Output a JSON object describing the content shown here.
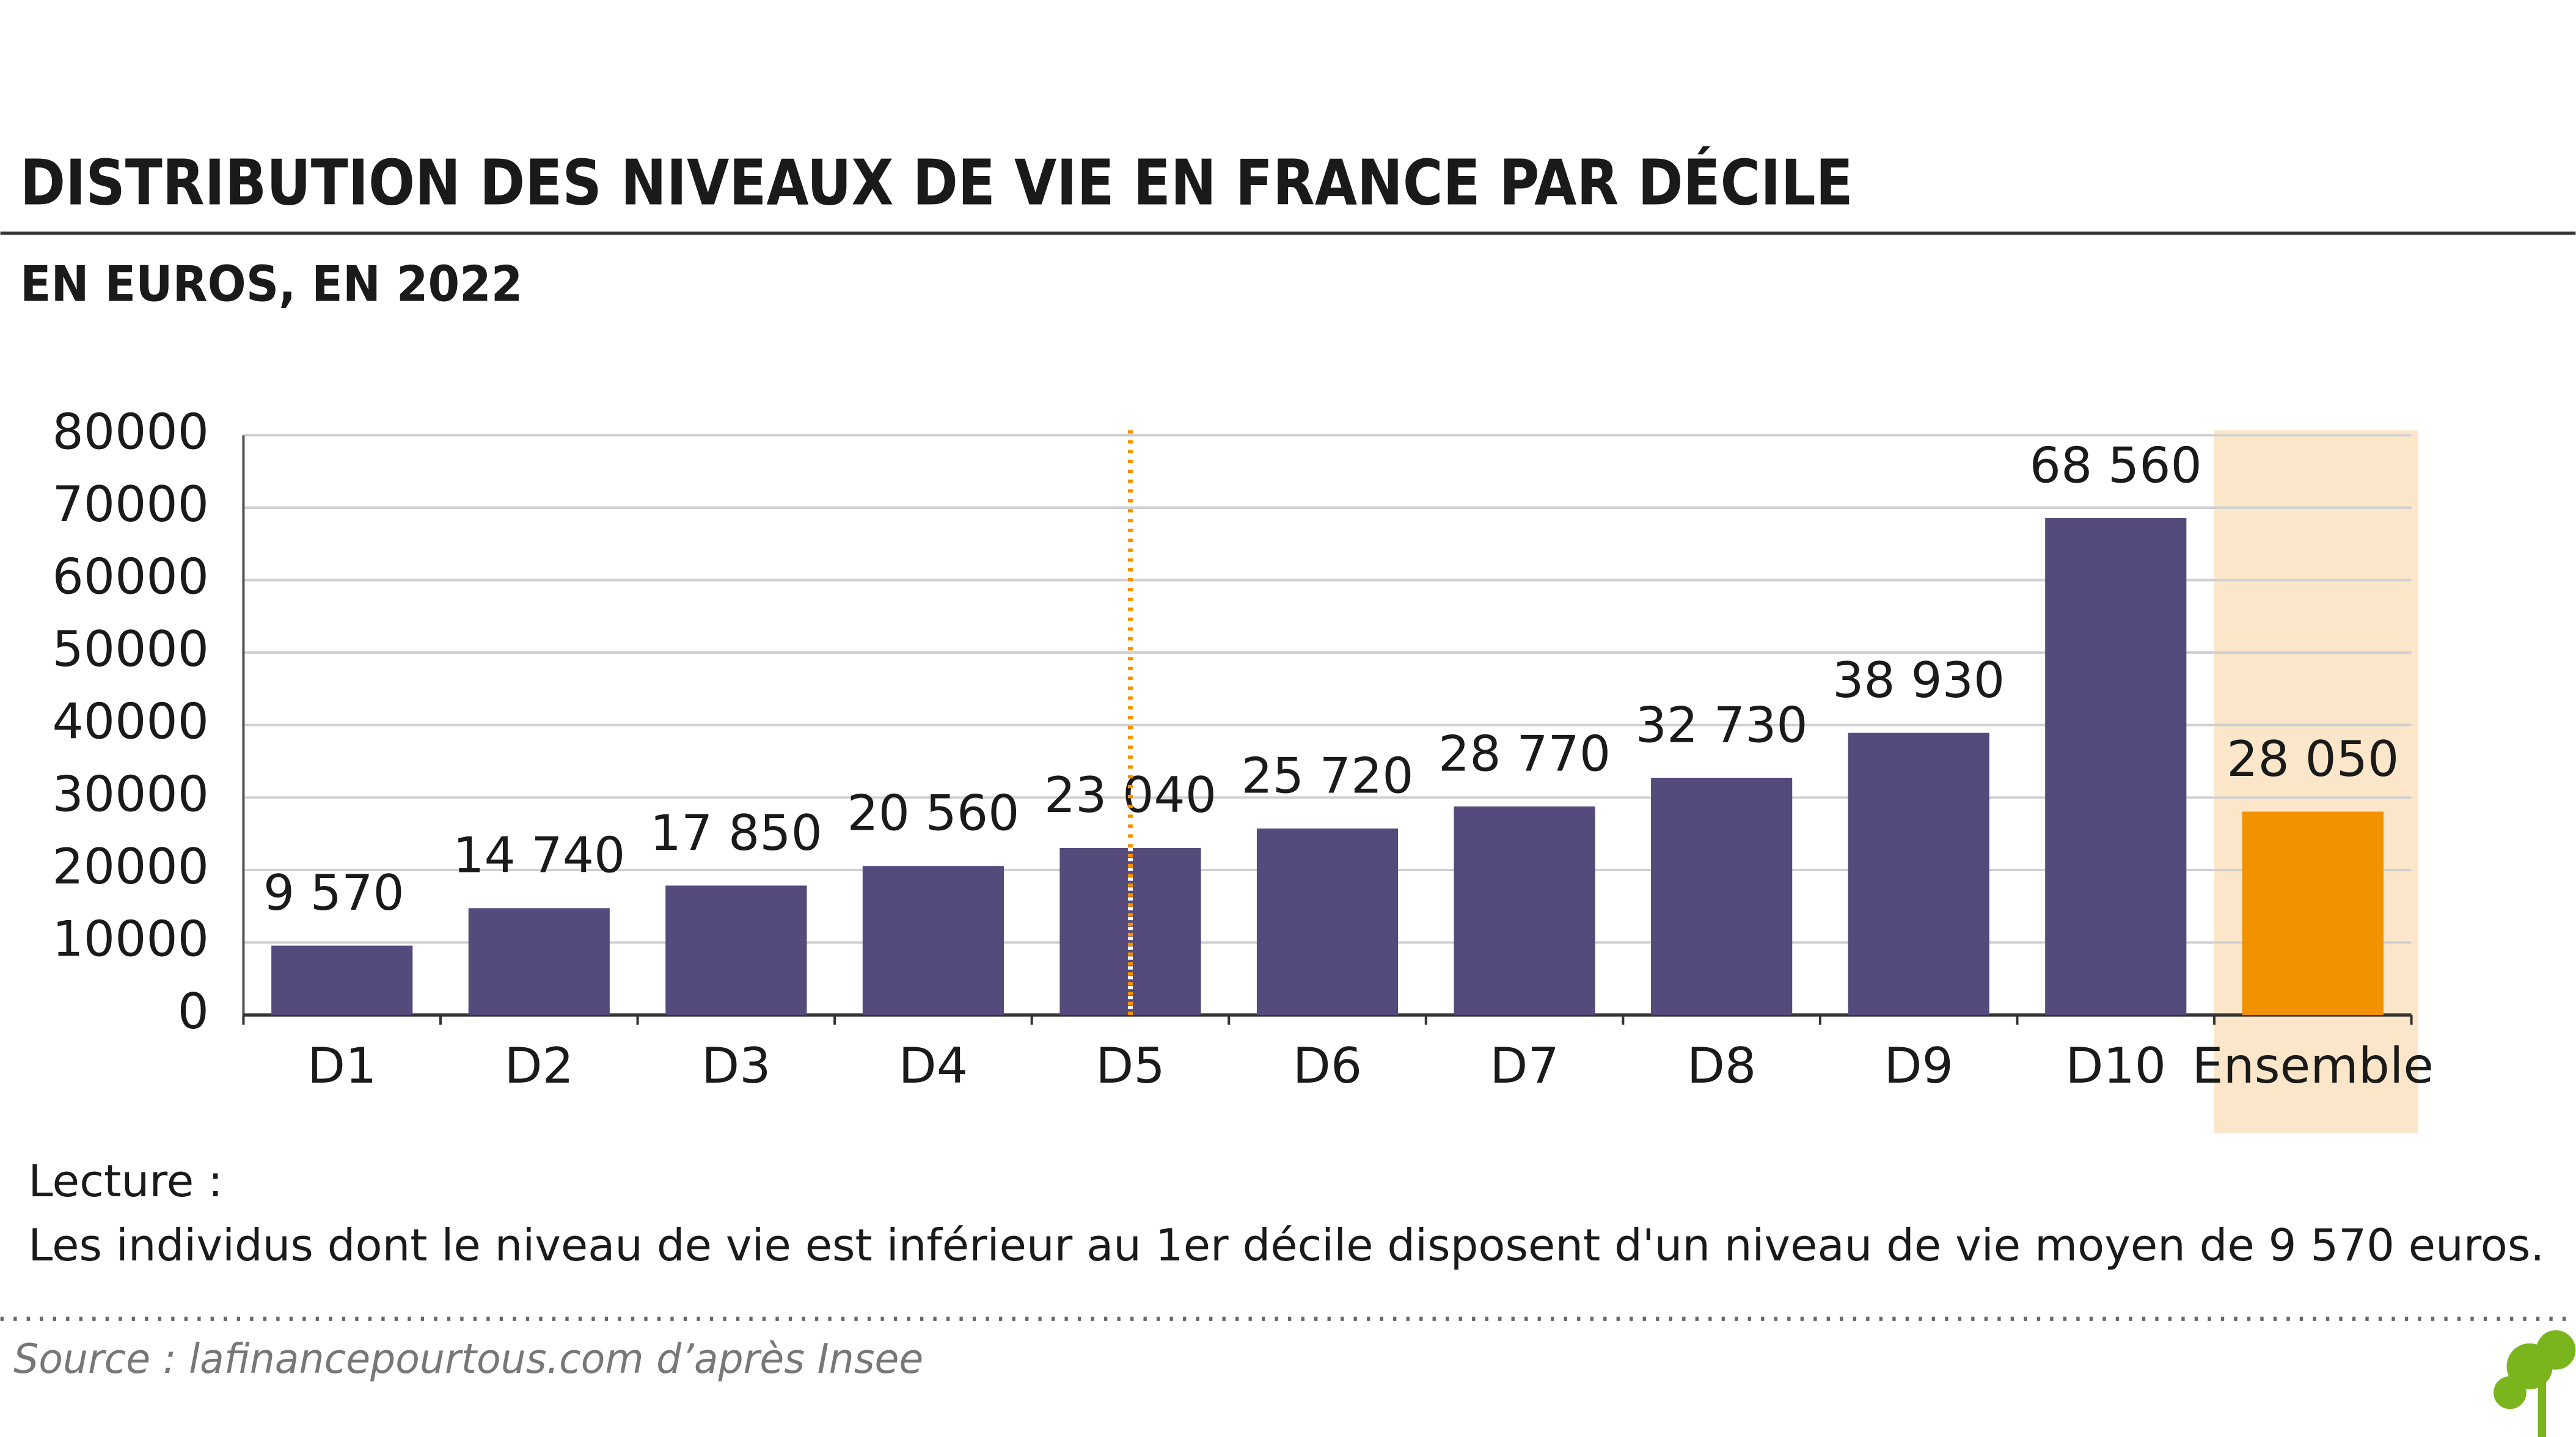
{
  "chart_data": {
    "type": "bar",
    "title": "DISTRIBUTION DES NIVEAUX DE VIE EN FRANCE PAR DÉCILE",
    "subtitle": "EN EUROS, EN 2022",
    "categories": [
      "D1",
      "D2",
      "D3",
      "D4",
      "D5",
      "D6",
      "D7",
      "D8",
      "D9",
      "D10",
      "Ensemble"
    ],
    "values": [
      9570,
      14740,
      17850,
      20560,
      23040,
      25720,
      28770,
      32730,
      38930,
      68560,
      28050
    ],
    "value_labels": [
      "9 570",
      "14 740",
      "17 850",
      "20 560",
      "23 040",
      "25 720",
      "28 770",
      "32 730",
      "38 930",
      "68 560",
      "28 050"
    ],
    "colors": [
      "#544a7b",
      "#544a7b",
      "#544a7b",
      "#544a7b",
      "#544a7b",
      "#544a7b",
      "#544a7b",
      "#544a7b",
      "#544a7b",
      "#544a7b",
      "#f39200"
    ],
    "highlight": "Ensemble",
    "highlight_color": "#fbe6c9",
    "vline_at": "D5",
    "vline_color": "#f39200",
    "ylim": [
      0,
      80000
    ],
    "yticks": [
      0,
      10000,
      20000,
      30000,
      40000,
      50000,
      60000,
      70000,
      80000
    ],
    "grid": true,
    "note_title": "Lecture :",
    "note": "Les individus dont le niveau de vie est inférieur au 1er décile disposent d'un niveau de vie moyen de 9 570 euros.",
    "source": "Source : lafinancepourtous.com d’après Insee"
  }
}
